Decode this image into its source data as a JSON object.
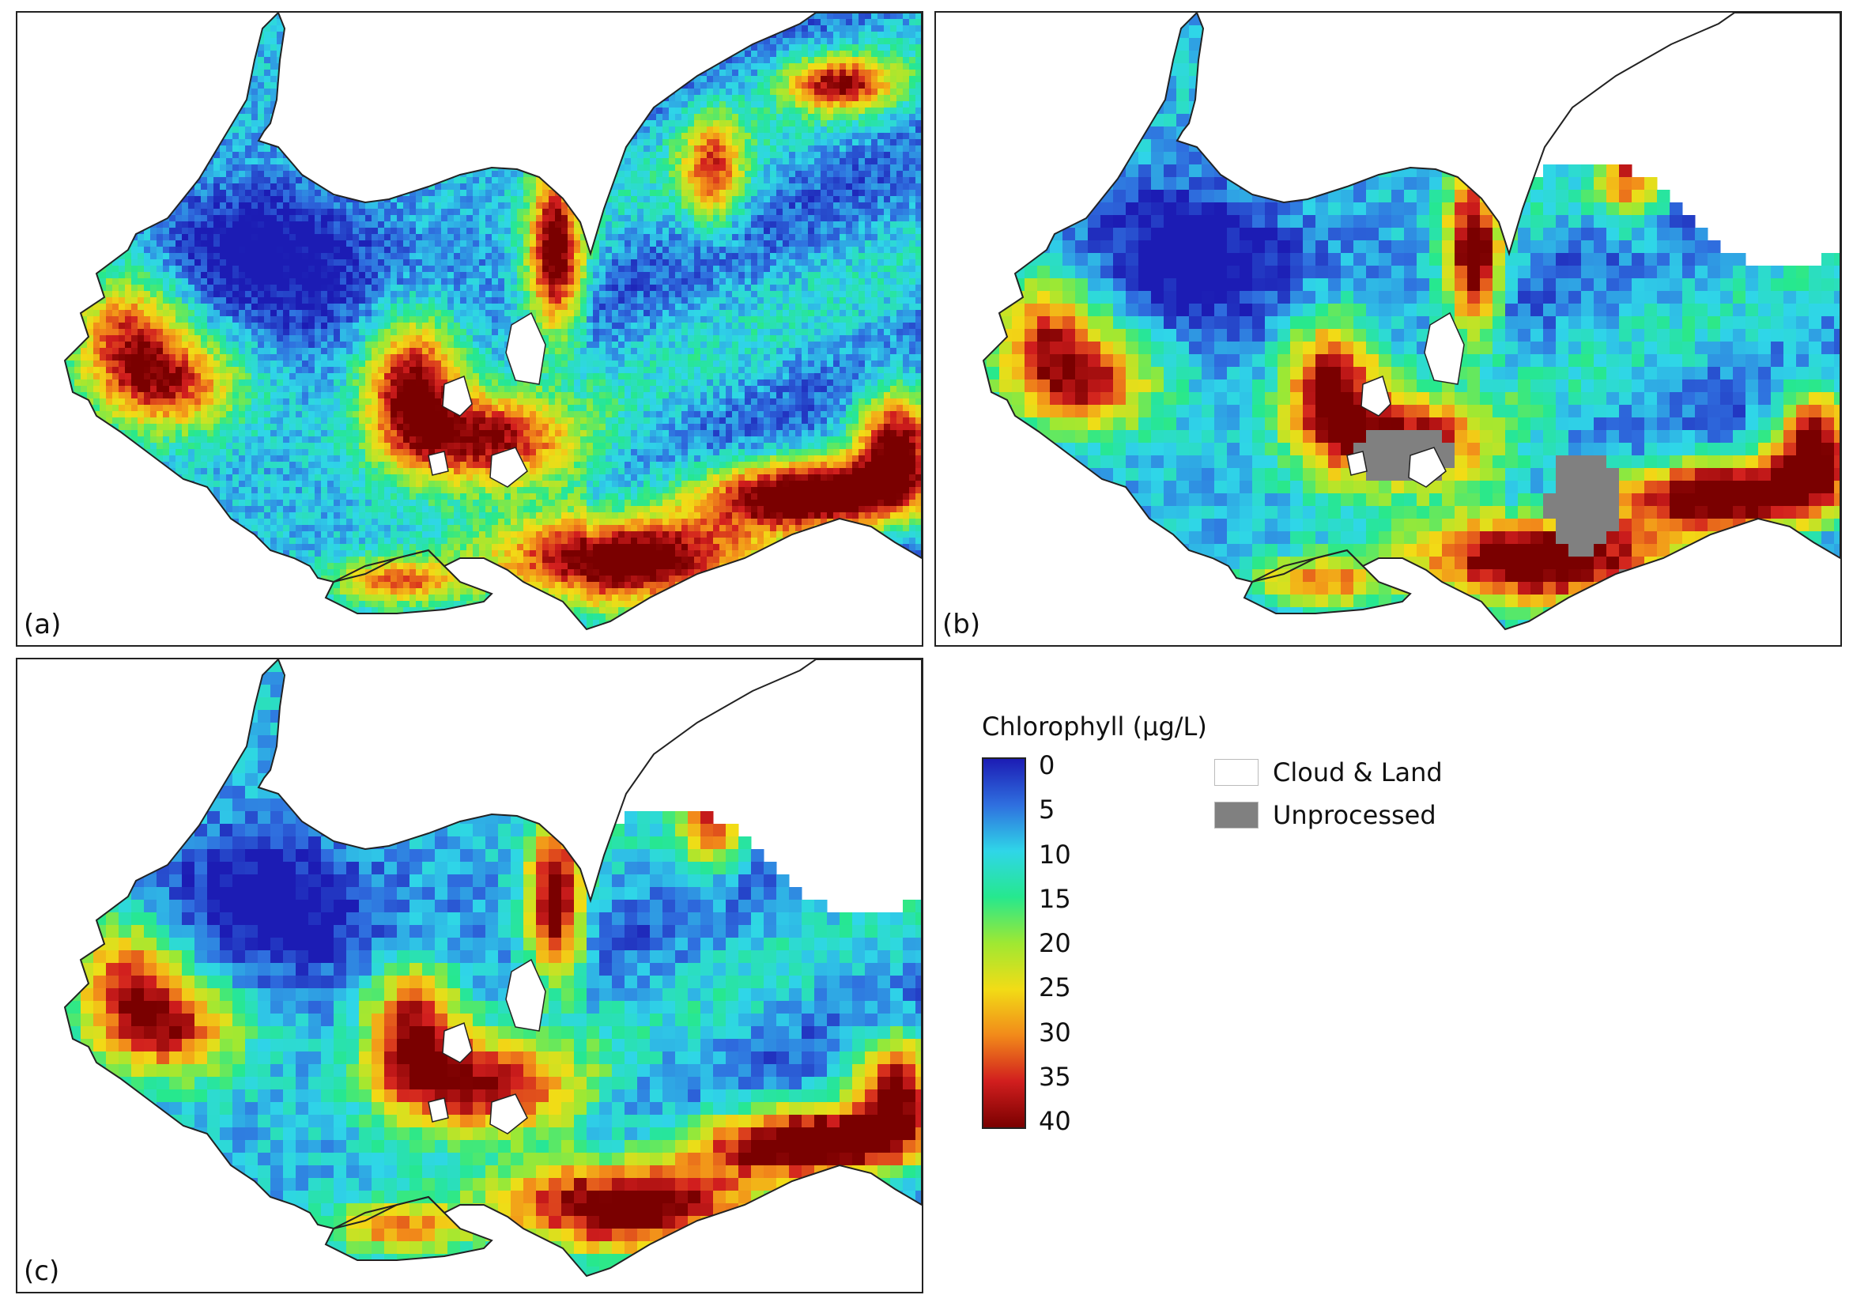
{
  "panels": [
    {
      "id": "a",
      "label": "(a)",
      "resolution": "fine",
      "unprocessed": false,
      "cloud_east": false
    },
    {
      "id": "b",
      "label": "(b)",
      "resolution": "coarse",
      "unprocessed": true,
      "cloud_east": true
    },
    {
      "id": "c",
      "label": "(c)",
      "resolution": "coarse",
      "unprocessed": false,
      "cloud_east": true
    }
  ],
  "legend": {
    "title": "Chlorophyll (µg/L)",
    "ticks": [
      "0",
      "5",
      "10",
      "15",
      "20",
      "25",
      "30",
      "35",
      "40"
    ],
    "colormap": [
      "#1c1cb4",
      "#2f6fdf",
      "#2fd6e8",
      "#26e88e",
      "#9fe832",
      "#f2dc16",
      "#f28a1a",
      "#d11e1e",
      "#7a0000"
    ],
    "keys": [
      {
        "label": "Cloud & Land",
        "color": "#ffffff"
      },
      {
        "label": "Unprocessed",
        "color": "#808080"
      }
    ]
  }
}
